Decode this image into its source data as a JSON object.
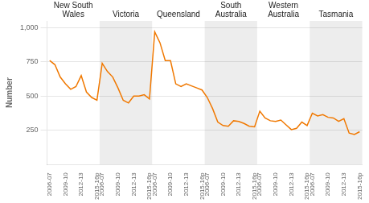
{
  "chart_data": {
    "type": "line",
    "ylabel": "Number",
    "annotations": [
      "New South\nWales",
      "Victoria",
      "Queensland",
      "South\nAustralia",
      "Western\nAustralia",
      "Tasmania"
    ],
    "categories": [
      "2006-07",
      null,
      null,
      "2009-10",
      null,
      null,
      "2012-13",
      null,
      null,
      "2015-16p",
      "2006-07",
      null,
      null,
      "2009-10",
      null,
      null,
      "2012-13",
      null,
      null,
      "2015-16p",
      "2006-07",
      null,
      null,
      "2009-10",
      null,
      null,
      "2012-13",
      null,
      null,
      "2015-16p",
      "2006-07",
      null,
      null,
      "2009-10",
      null,
      null,
      "2012-13",
      null,
      null,
      "2015-16p",
      "2006-07",
      null,
      null,
      "2009-10",
      null,
      null,
      "2012-13",
      null,
      null,
      "2015-16p",
      "2006-07",
      null,
      null,
      "2009-10",
      null,
      null,
      "2012-13",
      null,
      null,
      "2015-16p"
    ],
    "values": [
      760,
      730,
      640,
      590,
      550,
      570,
      650,
      530,
      490,
      470,
      740,
      680,
      640,
      560,
      470,
      450,
      500,
      500,
      510,
      480,
      970,
      890,
      760,
      760,
      590,
      570,
      590,
      575,
      560,
      545,
      490,
      410,
      310,
      285,
      280,
      320,
      315,
      300,
      280,
      275,
      390,
      340,
      320,
      315,
      325,
      290,
      255,
      265,
      310,
      285,
      375,
      355,
      365,
      345,
      340,
      315,
      335,
      230,
      220,
      240
    ],
    "color": "#F07800",
    "ylim": [
      0,
      1050
    ],
    "yticks": [
      250,
      500,
      750,
      {
        "value": 1000,
        "label": "1,000"
      }
    ],
    "grid": true
  }
}
